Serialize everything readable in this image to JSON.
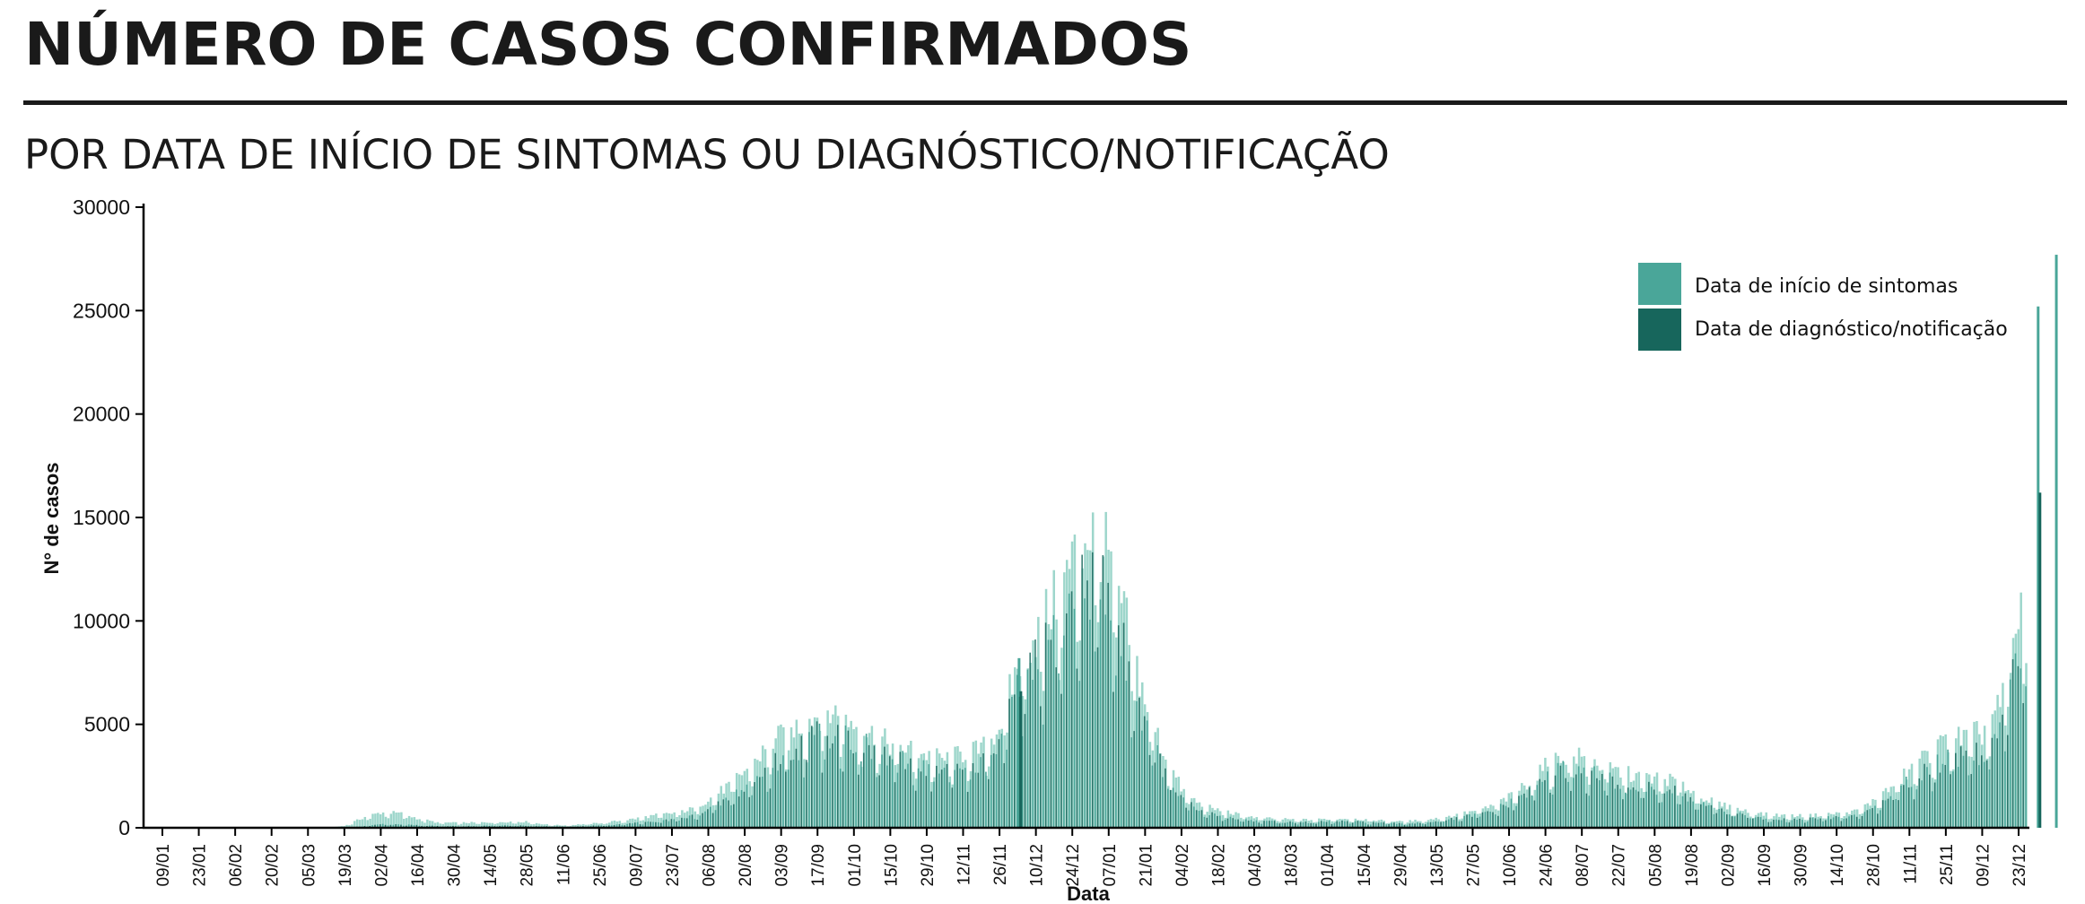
{
  "header": {
    "title": "NÚMERO DE CASOS CONFIRMADOS",
    "subtitle": "POR DATA DE INÍCIO DE SINTOMAS OU DIAGNÓSTICO/NOTIFICAÇÃO"
  },
  "colors": {
    "sintomas": "#4aa699",
    "notificacao": "#17665c",
    "sintomas_light": "#9dd6cb",
    "axis": "#000000",
    "title": "#1a1a1a"
  },
  "chart_data": {
    "type": "bar",
    "xlabel": "Data",
    "ylabel": "N° de casos",
    "ylim": [
      0,
      30000
    ],
    "yticks": [
      0,
      5000,
      10000,
      15000,
      20000,
      25000,
      30000
    ],
    "grid": false,
    "legend_position": "top-right",
    "x_tick_labels": [
      "09/01",
      "23/01",
      "06/02",
      "20/02",
      "05/03",
      "19/03",
      "02/04",
      "16/04",
      "30/04",
      "14/05",
      "28/05",
      "11/06",
      "25/06",
      "09/07",
      "23/07",
      "06/08",
      "20/08",
      "03/09",
      "17/09",
      "01/10",
      "15/10",
      "29/10",
      "12/11",
      "26/11",
      "10/12",
      "24/12",
      "07/01",
      "21/01",
      "04/02",
      "18/02",
      "04/03",
      "18/03",
      "01/04",
      "15/04",
      "29/04",
      "13/05",
      "27/05",
      "10/06",
      "24/06",
      "08/07",
      "22/07",
      "05/08",
      "19/08",
      "02/09",
      "16/09",
      "30/09",
      "14/10",
      "28/10",
      "11/11",
      "25/11",
      "09/12",
      "23/12"
    ],
    "series": [
      {
        "name": "Data de início de sintomas",
        "anchors": [
          [
            0,
            0
          ],
          [
            9,
            0
          ],
          [
            10,
            100
          ],
          [
            11,
            500
          ],
          [
            12,
            750
          ],
          [
            13,
            700
          ],
          [
            14,
            450
          ],
          [
            15,
            260
          ],
          [
            16,
            240
          ],
          [
            17,
            250
          ],
          [
            18,
            260
          ],
          [
            19,
            300
          ],
          [
            20,
            290
          ],
          [
            21,
            160
          ],
          [
            22,
            110
          ],
          [
            23,
            170
          ],
          [
            24,
            230
          ],
          [
            25,
            330
          ],
          [
            26,
            450
          ],
          [
            27,
            600
          ],
          [
            28,
            700
          ],
          [
            29,
            900
          ],
          [
            30,
            1400
          ],
          [
            31,
            2000
          ],
          [
            32,
            2800
          ],
          [
            33,
            3700
          ],
          [
            34,
            4500
          ],
          [
            35,
            5000
          ],
          [
            36,
            5500
          ],
          [
            37,
            5600
          ],
          [
            38,
            5000
          ],
          [
            39,
            4500
          ],
          [
            40,
            4000
          ],
          [
            41,
            3800
          ],
          [
            42,
            3500
          ],
          [
            43,
            3300
          ],
          [
            44,
            3600
          ],
          [
            45,
            3800
          ],
          [
            46,
            5000
          ],
          [
            47,
            8000
          ],
          [
            48,
            9500
          ],
          [
            49,
            11000
          ],
          [
            50,
            13000
          ],
          [
            51,
            14500
          ],
          [
            52,
            13000
          ],
          [
            53,
            9500
          ],
          [
            54,
            6000
          ],
          [
            55,
            3500
          ],
          [
            56,
            1800
          ],
          [
            57,
            1100
          ],
          [
            58,
            850
          ],
          [
            59,
            650
          ],
          [
            60,
            500
          ],
          [
            61,
            430
          ],
          [
            62,
            400
          ],
          [
            63,
            380
          ],
          [
            64,
            430
          ],
          [
            65,
            450
          ],
          [
            66,
            400
          ],
          [
            67,
            350
          ],
          [
            68,
            300
          ],
          [
            69,
            360
          ],
          [
            70,
            450
          ],
          [
            71,
            600
          ],
          [
            72,
            800
          ],
          [
            73,
            1050
          ],
          [
            74,
            1500
          ],
          [
            75,
            2200
          ],
          [
            76,
            3000
          ],
          [
            77,
            3500
          ],
          [
            78,
            3400
          ],
          [
            79,
            3000
          ],
          [
            80,
            2700
          ],
          [
            81,
            2500
          ],
          [
            82,
            2400
          ],
          [
            83,
            2300
          ],
          [
            84,
            1800
          ],
          [
            85,
            1300
          ],
          [
            86,
            1000
          ],
          [
            87,
            800
          ],
          [
            88,
            650
          ],
          [
            89,
            600
          ],
          [
            90,
            580
          ],
          [
            91,
            620
          ],
          [
            92,
            700
          ],
          [
            93,
            800
          ],
          [
            94,
            1300
          ],
          [
            95,
            2000
          ],
          [
            96,
            2800
          ],
          [
            97,
            3600
          ],
          [
            98,
            4200
          ],
          [
            99,
            4400
          ],
          [
            100,
            4600
          ],
          [
            101,
            6000
          ],
          [
            102,
            10000
          ],
          [
            103,
            16000
          ],
          [
            104,
            27000
          ]
        ],
        "spikes": [
          [
            47,
            8200
          ],
          [
            104,
            27700
          ],
          [
            103,
            25200
          ]
        ]
      },
      {
        "name": "Data de diagnóstico/notificação",
        "anchors": [
          [
            0,
            0
          ],
          [
            10,
            0
          ],
          [
            11,
            80
          ],
          [
            12,
            180
          ],
          [
            13,
            170
          ],
          [
            14,
            120
          ],
          [
            15,
            90
          ],
          [
            16,
            80
          ],
          [
            17,
            90
          ],
          [
            18,
            100
          ],
          [
            19,
            110
          ],
          [
            20,
            100
          ],
          [
            21,
            70
          ],
          [
            22,
            50
          ],
          [
            23,
            80
          ],
          [
            24,
            110
          ],
          [
            25,
            160
          ],
          [
            26,
            230
          ],
          [
            27,
            320
          ],
          [
            28,
            400
          ],
          [
            29,
            550
          ],
          [
            30,
            900
          ],
          [
            31,
            1400
          ],
          [
            32,
            2000
          ],
          [
            33,
            2700
          ],
          [
            34,
            3500
          ],
          [
            35,
            4100
          ],
          [
            36,
            4700
          ],
          [
            37,
            4800
          ],
          [
            38,
            4300
          ],
          [
            39,
            3800
          ],
          [
            40,
            3400
          ],
          [
            41,
            3200
          ],
          [
            42,
            3000
          ],
          [
            43,
            2800
          ],
          [
            44,
            3000
          ],
          [
            45,
            3200
          ],
          [
            46,
            4200
          ],
          [
            47,
            6800
          ],
          [
            48,
            8000
          ],
          [
            49,
            9500
          ],
          [
            50,
            11200
          ],
          [
            51,
            12500
          ],
          [
            52,
            11300
          ],
          [
            53,
            8200
          ],
          [
            54,
            5000
          ],
          [
            55,
            2800
          ],
          [
            56,
            1400
          ],
          [
            57,
            800
          ],
          [
            58,
            600
          ],
          [
            59,
            450
          ],
          [
            60,
            350
          ],
          [
            61,
            300
          ],
          [
            62,
            280
          ],
          [
            63,
            270
          ],
          [
            64,
            300
          ],
          [
            65,
            320
          ],
          [
            66,
            280
          ],
          [
            67,
            240
          ],
          [
            68,
            200
          ],
          [
            69,
            250
          ],
          [
            70,
            330
          ],
          [
            71,
            450
          ],
          [
            72,
            620
          ],
          [
            73,
            820
          ],
          [
            74,
            1200
          ],
          [
            75,
            1800
          ],
          [
            76,
            2500
          ],
          [
            77,
            2900
          ],
          [
            78,
            2800
          ],
          [
            79,
            2500
          ],
          [
            80,
            2200
          ],
          [
            81,
            2000
          ],
          [
            82,
            1900
          ],
          [
            83,
            1800
          ],
          [
            84,
            1400
          ],
          [
            85,
            1000
          ],
          [
            86,
            750
          ],
          [
            87,
            600
          ],
          [
            88,
            480
          ],
          [
            89,
            430
          ],
          [
            90,
            420
          ],
          [
            91,
            460
          ],
          [
            92,
            520
          ],
          [
            93,
            600
          ],
          [
            94,
            1000
          ],
          [
            95,
            1600
          ],
          [
            96,
            2300
          ],
          [
            97,
            3000
          ],
          [
            98,
            3500
          ],
          [
            99,
            3700
          ],
          [
            100,
            3800
          ],
          [
            101,
            5000
          ],
          [
            102,
            8500
          ],
          [
            103,
            14000
          ],
          [
            104,
            24500
          ]
        ],
        "spikes": [
          [
            47,
            6600
          ],
          [
            103,
            16200
          ]
        ]
      }
    ]
  }
}
